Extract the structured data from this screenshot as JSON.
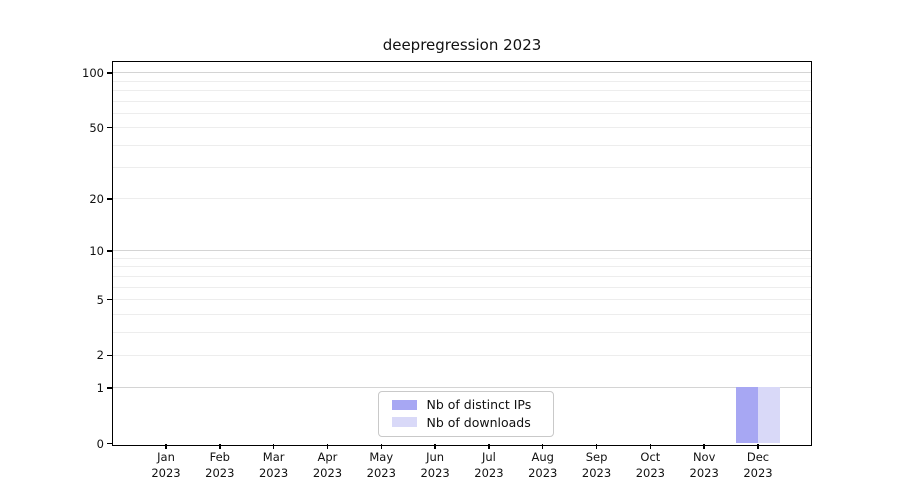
{
  "chart_data": {
    "type": "bar",
    "title": "deepregression 2023",
    "categories": [
      {
        "month": "Jan",
        "year": "2023"
      },
      {
        "month": "Feb",
        "year": "2023"
      },
      {
        "month": "Mar",
        "year": "2023"
      },
      {
        "month": "Apr",
        "year": "2023"
      },
      {
        "month": "May",
        "year": "2023"
      },
      {
        "month": "Jun",
        "year": "2023"
      },
      {
        "month": "Jul",
        "year": "2023"
      },
      {
        "month": "Aug",
        "year": "2023"
      },
      {
        "month": "Sep",
        "year": "2023"
      },
      {
        "month": "Oct",
        "year": "2023"
      },
      {
        "month": "Nov",
        "year": "2023"
      },
      {
        "month": "Dec",
        "year": "2023"
      }
    ],
    "series": [
      {
        "name": "Nb of distinct IPs",
        "key": "distinct-ips",
        "color": "#a7a7f3",
        "values": [
          0,
          0,
          0,
          0,
          0,
          0,
          0,
          0,
          0,
          0,
          0,
          1
        ]
      },
      {
        "name": "Nb of downloads",
        "key": "downloads",
        "color": "#d9d9f8",
        "values": [
          0,
          0,
          0,
          0,
          0,
          0,
          0,
          0,
          0,
          0,
          0,
          1
        ]
      }
    ],
    "yscale": "log1p",
    "ylim": [
      0,
      114
    ],
    "ytick_values": [
      0,
      1,
      2,
      5,
      10,
      20,
      50,
      100
    ],
    "grid_major_values": [
      1,
      10,
      100
    ],
    "grid_minor_values": [
      2,
      3,
      4,
      5,
      6,
      7,
      8,
      9,
      20,
      30,
      40,
      50,
      60,
      70,
      80,
      90
    ],
    "grid": true,
    "legend_position": "bottom-center",
    "axis_color": "#000000",
    "grid_minor_color": "#ededed",
    "grid_major_color": "#d4d4d4"
  }
}
